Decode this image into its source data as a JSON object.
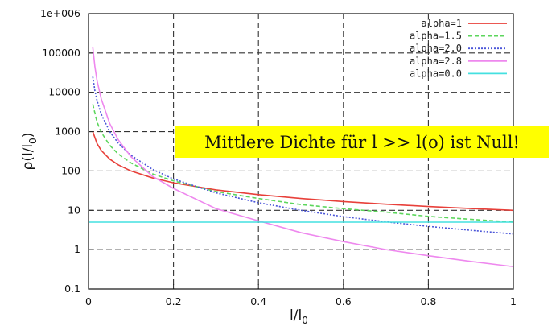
{
  "chart_data": {
    "type": "line",
    "xlabel": "l/l",
    "xlabel_sub": "0",
    "ylabel_open": "ρ(l/l",
    "ylabel_sub": "0",
    "ylabel_close": ")",
    "x_scale": "linear",
    "y_scale": "log",
    "xlim": [
      0,
      1
    ],
    "ylim": [
      0.1,
      1000000
    ],
    "x_ticks": [
      {
        "value": 0,
        "label": "0"
      },
      {
        "value": 0.2,
        "label": "0.2"
      },
      {
        "value": 0.4,
        "label": "0.4"
      },
      {
        "value": 0.6,
        "label": "0.6"
      },
      {
        "value": 0.8,
        "label": "0.8"
      },
      {
        "value": 1,
        "label": "1"
      }
    ],
    "y_ticks": [
      {
        "value": 0.1,
        "label": "0.1"
      },
      {
        "value": 1,
        "label": "1"
      },
      {
        "value": 10,
        "label": "10"
      },
      {
        "value": 100,
        "label": "100"
      },
      {
        "value": 1000,
        "label": "1000"
      },
      {
        "value": 10000,
        "label": "10000"
      },
      {
        "value": 100000,
        "label": "100000"
      },
      {
        "value": 1000000,
        "label": "1e+006"
      }
    ],
    "grid": true,
    "legend_position": "top-right",
    "series": [
      {
        "name": "alpha=1",
        "color": "#e8403a",
        "dash": "solid",
        "x": [
          0.01,
          0.02,
          0.03,
          0.05,
          0.07,
          0.1,
          0.15,
          0.2,
          0.3,
          0.4,
          0.5,
          0.6,
          0.7,
          0.8,
          0.9,
          1.0
        ],
        "y": [
          1000,
          500,
          333,
          200,
          143,
          100,
          67,
          50,
          33,
          25,
          20,
          16.7,
          14.3,
          12.5,
          11.1,
          10
        ]
      },
      {
        "name": "alpha=1.5",
        "color": "#5cd65c",
        "dash": "dashed",
        "x": [
          0.01,
          0.02,
          0.03,
          0.05,
          0.07,
          0.1,
          0.15,
          0.2,
          0.3,
          0.4,
          0.5,
          0.6,
          0.7,
          0.8,
          0.9,
          1.0
        ],
        "y": [
          5000,
          1770,
          960,
          450,
          270,
          160,
          85,
          56,
          30,
          20,
          14,
          11,
          9,
          7,
          5.9,
          5
        ]
      },
      {
        "name": "alpha=2.0",
        "color": "#4a55d8",
        "dash": "dotted",
        "x": [
          0.01,
          0.015,
          0.02,
          0.03,
          0.05,
          0.07,
          0.1,
          0.15,
          0.2,
          0.3,
          0.4,
          0.5,
          0.6,
          0.7,
          0.8,
          0.9,
          1.0
        ],
        "y": [
          25000,
          11000,
          6250,
          2780,
          1000,
          510,
          250,
          111,
          62.5,
          27.8,
          15.6,
          10,
          6.9,
          5.1,
          3.9,
          3.1,
          2.5
        ]
      },
      {
        "name": "alpha=2.8",
        "color": "#ee88ee",
        "dash": "solid",
        "x": [
          0.01,
          0.015,
          0.02,
          0.03,
          0.05,
          0.07,
          0.1,
          0.15,
          0.2,
          0.3,
          0.4,
          0.5,
          0.6,
          0.7,
          0.8,
          0.9,
          1.0
        ],
        "y": [
          140000,
          45000,
          20000,
          6800,
          1600,
          620,
          230,
          74,
          36,
          11,
          5.4,
          2.7,
          1.6,
          1.0,
          0.7,
          0.5,
          0.37
        ]
      },
      {
        "name": "alpha=0.0",
        "color": "#44e0e0",
        "dash": "solid",
        "x": [
          0,
          1
        ],
        "y": [
          5,
          5
        ]
      }
    ],
    "annotation": "Mittlere Dichte für l >> l(o) ist Null!"
  }
}
